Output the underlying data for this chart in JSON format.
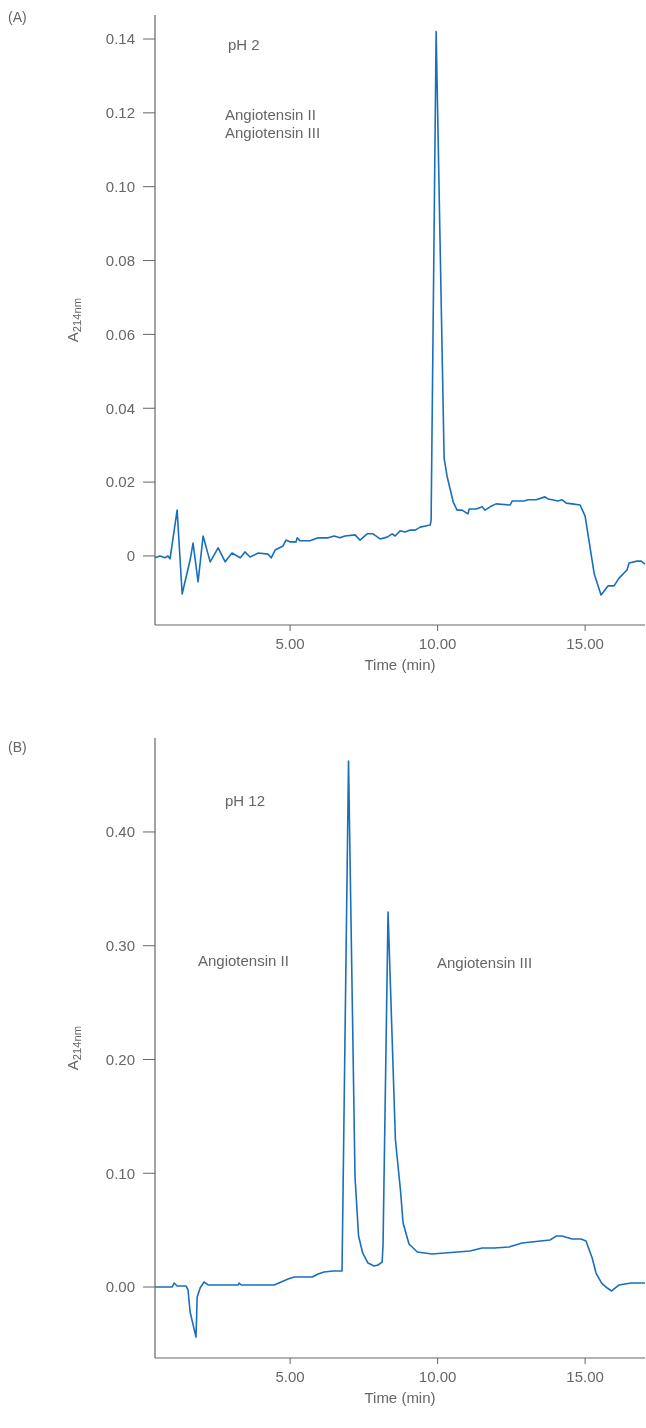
{
  "chart_data": [
    {
      "type": "line",
      "title": "(A)",
      "xlabel": "Time (min)",
      "ylabel": "A$_{214nm}$",
      "annotations": [
        "pH 2",
        "Angiotensin II",
        "Angiotensin III"
      ],
      "xlim": [
        0.42,
        17.03
      ],
      "xticks": [
        {
          "value": 5,
          "label": "5.00"
        },
        {
          "value": 10,
          "label": "10.00"
        },
        {
          "value": 15,
          "label": "15.00"
        }
      ],
      "ylim": [
        -0.0187,
        0.1465
      ],
      "yticks": [
        0,
        0.02,
        0.04,
        0.06,
        0.08,
        {
          "value": 0.1,
          "label": "0.10"
        },
        0.12,
        0.14
      ],
      "series": [
        {
          "color": "#1a6fbd",
          "x": [
            0.42,
            0.59,
            0.76,
            0.86,
            0.93,
            1.17,
            1.34,
            1.61,
            1.71,
            1.88,
            2.05,
            2.29,
            2.56,
            2.8,
            3.03,
            3.31,
            3.47,
            3.64,
            3.92,
            4.25,
            4.36,
            4.49,
            4.76,
            4.86,
            5.0,
            5.2,
            5.24,
            5.34,
            5.68,
            5.95,
            6.29,
            6.49,
            6.69,
            6.86,
            7.2,
            7.37,
            7.61,
            7.81,
            8.05,
            8.29,
            8.46,
            8.56,
            8.73,
            8.9,
            9.07,
            9.24,
            9.41,
            9.58,
            9.75,
            9.78,
            9.95,
            10.22,
            10.32,
            10.53,
            10.66,
            10.83,
            11.03,
            11.07,
            11.31,
            11.51,
            11.61,
            11.78,
            11.98,
            12.46,
            12.53,
            12.93,
            13.07,
            13.34,
            13.64,
            13.75,
            13.88,
            14.08,
            14.22,
            14.36,
            14.56,
            14.83,
            15.0,
            15.31,
            15.54,
            15.78,
            15.98,
            16.15,
            16.42,
            16.49,
            16.76,
            16.9,
            17.03
          ],
          "values": [
            -0.0005,
            0,
            -0.0005,
            0,
            -0.0008,
            0.0124,
            -0.0103,
            -0.0011,
            0.0035,
            -0.007,
            0.0054,
            -0.0016,
            0.0022,
            -0.0016,
            0.0008,
            -0.0005,
            0.0011,
            -0.0003,
            0.0008,
            0.0005,
            -0.0005,
            0.0016,
            0.0027,
            0.0043,
            0.0038,
            0.0038,
            0.0049,
            0.0041,
            0.0041,
            0.0049,
            0.0049,
            0.0054,
            0.0049,
            0.0054,
            0.0057,
            0.0043,
            0.006,
            0.006,
            0.0046,
            0.0051,
            0.006,
            0.0054,
            0.0068,
            0.0065,
            0.007,
            0.007,
            0.0078,
            0.0081,
            0.0084,
            0.0097,
            0.142,
            0.0265,
            0.0216,
            0.0146,
            0.0124,
            0.0124,
            0.0114,
            0.0127,
            0.0127,
            0.0133,
            0.0124,
            0.0133,
            0.0141,
            0.0138,
            0.0149,
            0.0149,
            0.0152,
            0.0152,
            0.016,
            0.0154,
            0.0152,
            0.0149,
            0.0152,
            0.0143,
            0.0141,
            0.0138,
            0.0108,
            -0.0049,
            -0.0106,
            -0.0081,
            -0.0081,
            -0.006,
            -0.0038,
            -0.0019,
            -0.0014,
            -0.0014,
            -0.0022
          ]
        }
      ]
    },
    {
      "type": "line",
      "title": "(B)",
      "xlabel": "Time (min)",
      "ylabel": "A$_{214nm}$",
      "annotations": [
        "pH 12",
        "Angiotensin II",
        "Angiotensin III"
      ],
      "xlim": [
        0.42,
        17.03
      ],
      "xticks": [
        {
          "value": 5,
          "label": "5.00"
        },
        {
          "value": 10,
          "label": "10.00"
        },
        {
          "value": 15,
          "label": "15.00"
        }
      ],
      "ylim": [
        -0.0624,
        0.4826
      ],
      "yticks": [
        {
          "value": 0,
          "label": "0.00"
        },
        {
          "value": 0.1,
          "label": "0.10"
        },
        {
          "value": 0.2,
          "label": "0.20"
        },
        {
          "value": 0.3,
          "label": "0.30"
        },
        {
          "value": 0.4,
          "label": "0.40"
        }
      ],
      "series": [
        {
          "color": "#1a6fbd",
          "x": [
            0.42,
            1.0,
            1.07,
            1.17,
            1.47,
            1.54,
            1.61,
            1.81,
            1.85,
            1.95,
            2.08,
            2.22,
            3.24,
            3.27,
            3.34,
            4.46,
            4.93,
            5.14,
            5.44,
            5.75,
            5.95,
            6.15,
            6.46,
            6.76,
            6.98,
            7.2,
            7.32,
            7.46,
            7.64,
            7.85,
            7.98,
            8.12,
            8.15,
            8.32,
            8.57,
            8.74,
            8.83,
            9.03,
            9.31,
            9.81,
            11.1,
            11.51,
            11.92,
            12.42,
            12.86,
            13.81,
            14.02,
            14.22,
            14.56,
            14.86,
            15.03,
            15.24,
            15.37,
            15.56,
            15.75,
            15.9,
            16.15,
            16.56,
            17.03
          ],
          "values": [
            0,
            0,
            0.0035,
            0.0009,
            0.0009,
            -0.0026,
            -0.022,
            -0.044,
            -0.0088,
            -0.0009,
            0.0044,
            0.0018,
            0.0018,
            0.0035,
            0.0018,
            0.0018,
            0.007,
            0.0088,
            0.0088,
            0.0088,
            0.0114,
            0.0132,
            0.0141,
            0.0141,
            0.4624,
            0.0967,
            0.0448,
            0.0299,
            0.0211,
            0.0185,
            0.0193,
            0.022,
            0.0369,
            0.3297,
            0.1292,
            0.0853,
            0.0563,
            0.0378,
            0.0308,
            0.029,
            0.0316,
            0.0343,
            0.0343,
            0.0352,
            0.0387,
            0.0413,
            0.0448,
            0.0448,
            0.0422,
            0.0422,
            0.0404,
            0.0255,
            0.0123,
            0.0035,
            -0.0009,
            -0.0035,
            0.0018,
            0.0035,
            0.0035
          ]
        }
      ]
    }
  ]
}
